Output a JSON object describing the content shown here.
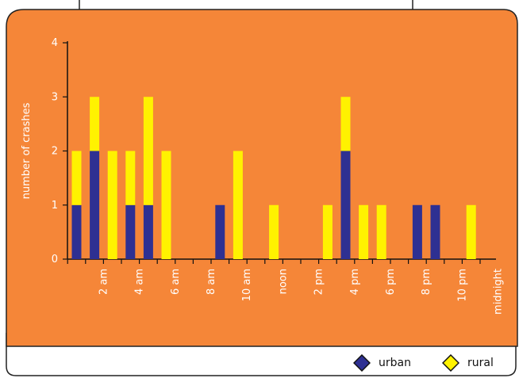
{
  "chart_data": {
    "type": "bar",
    "stacked": true,
    "ylabel": "number of crashes",
    "xlabel": "",
    "ylim": [
      0,
      4
    ],
    "yticks": [
      0,
      1,
      2,
      3,
      4
    ],
    "hours": [
      1,
      2,
      3,
      4,
      5,
      6,
      7,
      8,
      9,
      10,
      11,
      12,
      13,
      14,
      15,
      16,
      17,
      18,
      19,
      20,
      21,
      22,
      23,
      24
    ],
    "x_tick_labels": [
      "2 am",
      "4 am",
      "6 am",
      "8 am",
      "10 am",
      "noon",
      "2 pm",
      "4 pm",
      "6 pm",
      "8 pm",
      "10 pm",
      "midnight"
    ],
    "series": [
      {
        "name": "urban",
        "color": "#2e3092",
        "values": [
          1,
          2,
          0,
          1,
          1,
          0,
          0,
          0,
          1,
          0,
          0,
          0,
          0,
          0,
          0,
          2,
          0,
          0,
          0,
          1,
          1,
          0,
          0,
          0
        ]
      },
      {
        "name": "rural",
        "color": "#fff200",
        "values": [
          1,
          1,
          2,
          1,
          2,
          2,
          0,
          0,
          0,
          2,
          0,
          1,
          0,
          0,
          1,
          1,
          1,
          1,
          0,
          0,
          0,
          0,
          1,
          0
        ]
      }
    ],
    "legend_position": "bottom-right",
    "grid": false,
    "background_color": "#f58638"
  },
  "legend": [
    {
      "label": "urban",
      "color": "#2e3092"
    },
    {
      "label": "rural",
      "color": "#fff200"
    }
  ]
}
